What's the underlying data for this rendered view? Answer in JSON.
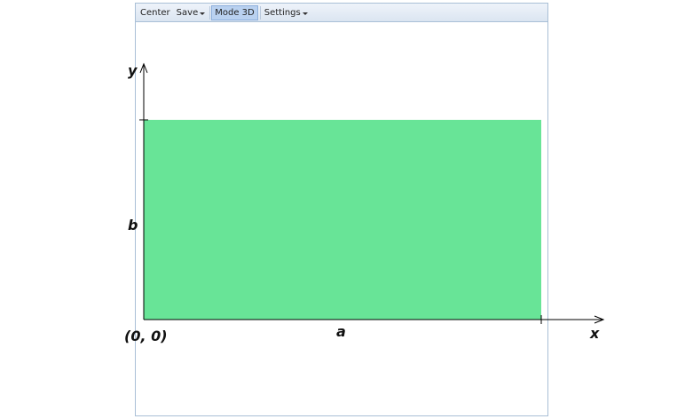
{
  "toolbar": {
    "center_label": "Center",
    "save_label": "Save",
    "mode_label": "Mode 3D",
    "settings_label": "Settings"
  },
  "figure": {
    "y_axis_label": "y",
    "x_axis_label": "x",
    "height_label": "b",
    "width_label": "a",
    "origin_label": "(0, 0)",
    "rect_color": "#68e497"
  }
}
